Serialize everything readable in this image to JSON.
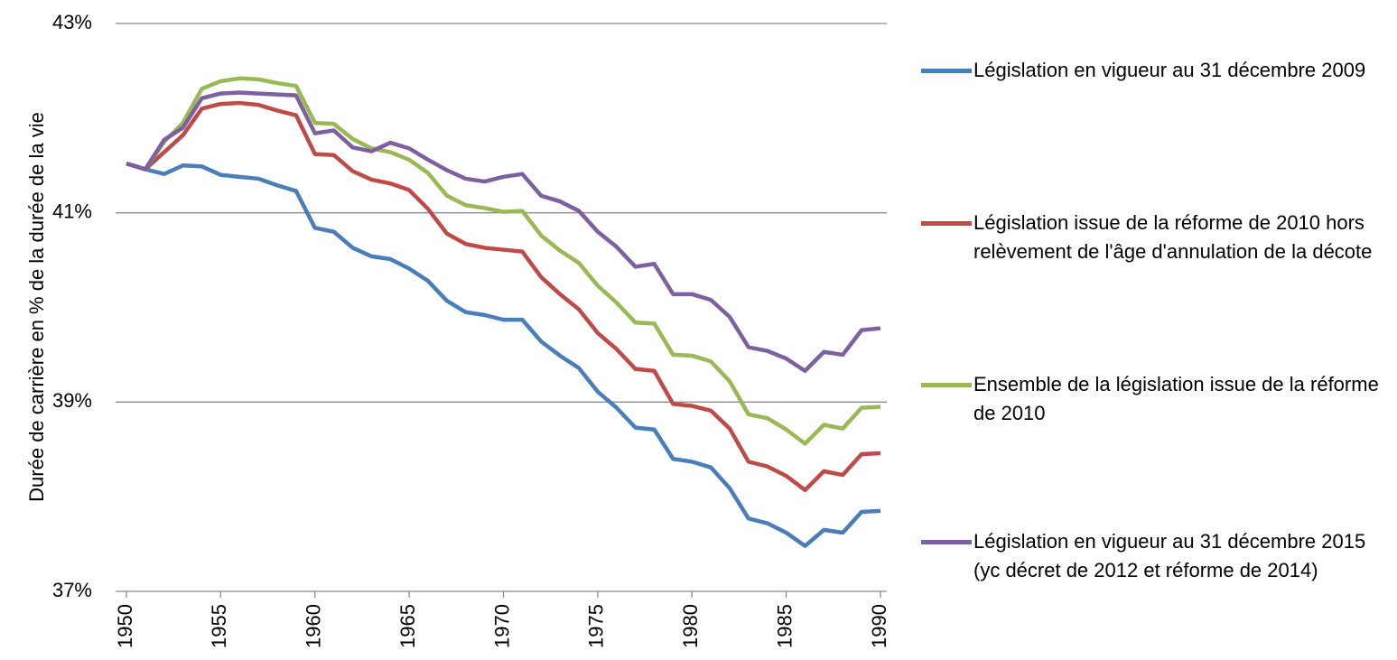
{
  "chart_data": {
    "type": "line",
    "ylabel": "Durée de carrière en % de la durée de la vie",
    "x": [
      1950,
      1951,
      1952,
      1953,
      1954,
      1955,
      1956,
      1957,
      1958,
      1959,
      1960,
      1961,
      1962,
      1963,
      1964,
      1965,
      1966,
      1967,
      1968,
      1969,
      1970,
      1971,
      1972,
      1973,
      1974,
      1975,
      1976,
      1977,
      1978,
      1979,
      1980,
      1981,
      1982,
      1983,
      1984,
      1985,
      1986,
      1987,
      1988,
      1989,
      1990
    ],
    "xlim": [
      1950,
      1990
    ],
    "xticks": [
      1950,
      1955,
      1960,
      1965,
      1970,
      1975,
      1980,
      1985,
      1990
    ],
    "ylim": [
      37,
      43
    ],
    "yticks": [
      {
        "value": 37,
        "label": "37%"
      },
      {
        "value": 39,
        "label": "39%"
      },
      {
        "value": 41,
        "label": "41%"
      },
      {
        "value": 43,
        "label": "43%"
      }
    ],
    "grid": true,
    "legend": "right",
    "series": [
      {
        "name": "Législation en vigueur au 31 décembre 2009",
        "color": "#4a7ebb",
        "values": [
          41.52,
          41.46,
          41.41,
          41.5,
          41.49,
          41.4,
          41.38,
          41.36,
          41.29,
          41.23,
          40.84,
          40.8,
          40.63,
          40.54,
          40.51,
          40.41,
          40.28,
          40.07,
          39.95,
          39.92,
          39.87,
          39.87,
          39.64,
          39.49,
          39.36,
          39.11,
          38.94,
          38.73,
          38.71,
          38.4,
          38.37,
          38.31,
          38.09,
          37.77,
          37.72,
          37.62,
          37.48,
          37.65,
          37.62,
          37.84,
          37.85
        ]
      },
      {
        "name": "Législation issue de la réforme de 2010 hors relèvement de l'âge d'annulation de la décote",
        "color": "#be4b48",
        "values": [
          41.52,
          41.46,
          41.64,
          41.82,
          42.1,
          42.15,
          42.16,
          42.14,
          42.08,
          42.03,
          41.62,
          41.61,
          41.44,
          41.35,
          41.31,
          41.24,
          41.04,
          40.78,
          40.67,
          40.63,
          40.61,
          40.59,
          40.32,
          40.14,
          39.98,
          39.73,
          39.56,
          39.35,
          39.33,
          38.98,
          38.96,
          38.91,
          38.72,
          38.37,
          38.32,
          38.22,
          38.07,
          38.27,
          38.23,
          38.45,
          38.46
        ]
      },
      {
        "name": "Ensemble de la législation issue de la réforme de 2010",
        "color": "#98b954",
        "values": [
          41.52,
          41.46,
          41.75,
          41.95,
          42.31,
          42.39,
          42.42,
          42.41,
          42.37,
          42.34,
          41.95,
          41.94,
          41.78,
          41.68,
          41.64,
          41.56,
          41.42,
          41.18,
          41.08,
          41.05,
          41.01,
          41.02,
          40.76,
          40.6,
          40.47,
          40.23,
          40.05,
          39.84,
          39.83,
          39.5,
          39.49,
          39.43,
          39.22,
          38.87,
          38.83,
          38.71,
          38.56,
          38.76,
          38.72,
          38.94,
          38.95
        ]
      },
      {
        "name": "Législation en vigueur au 31 décembre 2015 (yc décret de 2012 et réforme de 2014)",
        "color": "#7d60a0",
        "values": [
          41.52,
          41.46,
          41.77,
          41.9,
          42.21,
          42.26,
          42.27,
          42.26,
          42.25,
          42.24,
          41.84,
          41.87,
          41.69,
          41.65,
          41.74,
          41.68,
          41.56,
          41.45,
          41.36,
          41.33,
          41.38,
          41.41,
          41.18,
          41.12,
          41.02,
          40.8,
          40.64,
          40.43,
          40.46,
          40.14,
          40.14,
          40.08,
          39.9,
          39.58,
          39.54,
          39.46,
          39.33,
          39.53,
          39.5,
          39.76,
          39.78
        ]
      }
    ]
  }
}
